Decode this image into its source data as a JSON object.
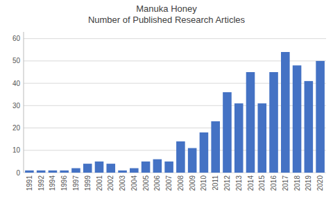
{
  "chart_data": {
    "type": "bar",
    "title": "Manuka Honey\nNumber of Published Research Articles",
    "categories": [
      "1991",
      "1992",
      "1994",
      "1996",
      "1997",
      "1999",
      "2001",
      "2002",
      "2003",
      "2004",
      "2005",
      "2006",
      "2007",
      "2008",
      "2009",
      "2010",
      "2011",
      "2012",
      "2013",
      "2014",
      "2015",
      "2016",
      "2017",
      "2018",
      "2019",
      "2020"
    ],
    "values": [
      1,
      1,
      1,
      1,
      2,
      4,
      5,
      4,
      1,
      2,
      5,
      6,
      5,
      14,
      11,
      18,
      23,
      36,
      31,
      45,
      31,
      45,
      54,
      48,
      41,
      50
    ],
    "color": "#4472C4",
    "ylim": [
      0,
      63
    ],
    "yticks": [
      0,
      10,
      20,
      30,
      40,
      50,
      60
    ],
    "grid": true
  }
}
